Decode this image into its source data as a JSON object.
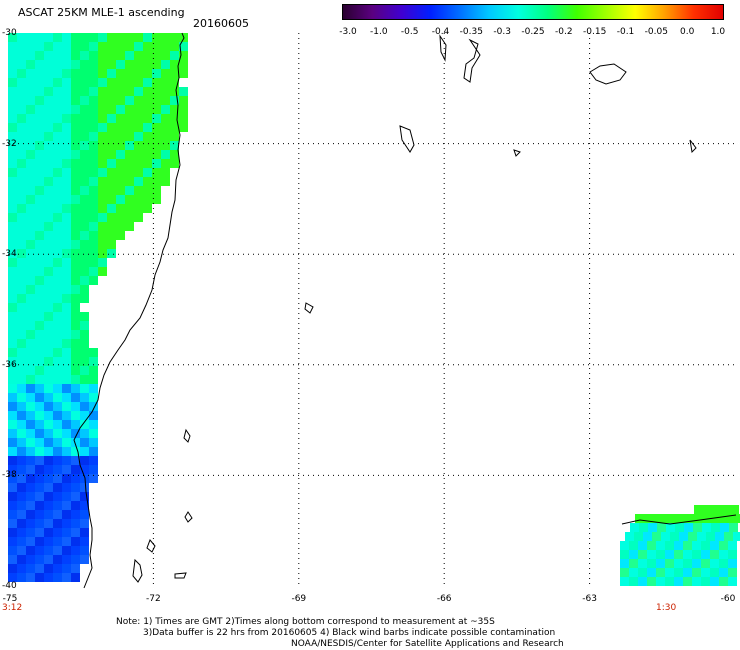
{
  "header": {
    "title": "ASCAT 25KM MLE-1 ascending",
    "date": "20160605"
  },
  "colorbar": {
    "labels": [
      "-3.0",
      "-1.0",
      "-0.5",
      "-0.4",
      "-0.35",
      "-0.3",
      "-0.25",
      "-0.2",
      "-0.15",
      "-0.1",
      "-0.05",
      "0.0",
      "1.0"
    ],
    "colors": [
      "#2a0030",
      "#5a0080",
      "#4000d0",
      "#0020ff",
      "#0070ff",
      "#00c8ff",
      "#00ffe0",
      "#00ff80",
      "#40ff00",
      "#a0ff00",
      "#ffff00",
      "#ffa000",
      "#ff3000",
      "#e00000"
    ]
  },
  "axes": {
    "lat_labels": [
      "-30",
      "-32",
      "-34",
      "-36",
      "-38",
      "-40"
    ],
    "lon_labels": [
      "-75",
      "-72",
      "-69",
      "-66",
      "-63",
      "-60"
    ]
  },
  "times": {
    "left": "3:12",
    "right": "1:30"
  },
  "notes": {
    "line1": "Note: 1) Times are GMT 2)Times along bottom correspond to measurement at ~35S",
    "line2": "3)Data buffer is 22 hrs from 20160605 4) Black wind barbs indicate possible contamination",
    "line3": "NOAA/NESDIS/Center for Satellite Applications and Research"
  }
}
